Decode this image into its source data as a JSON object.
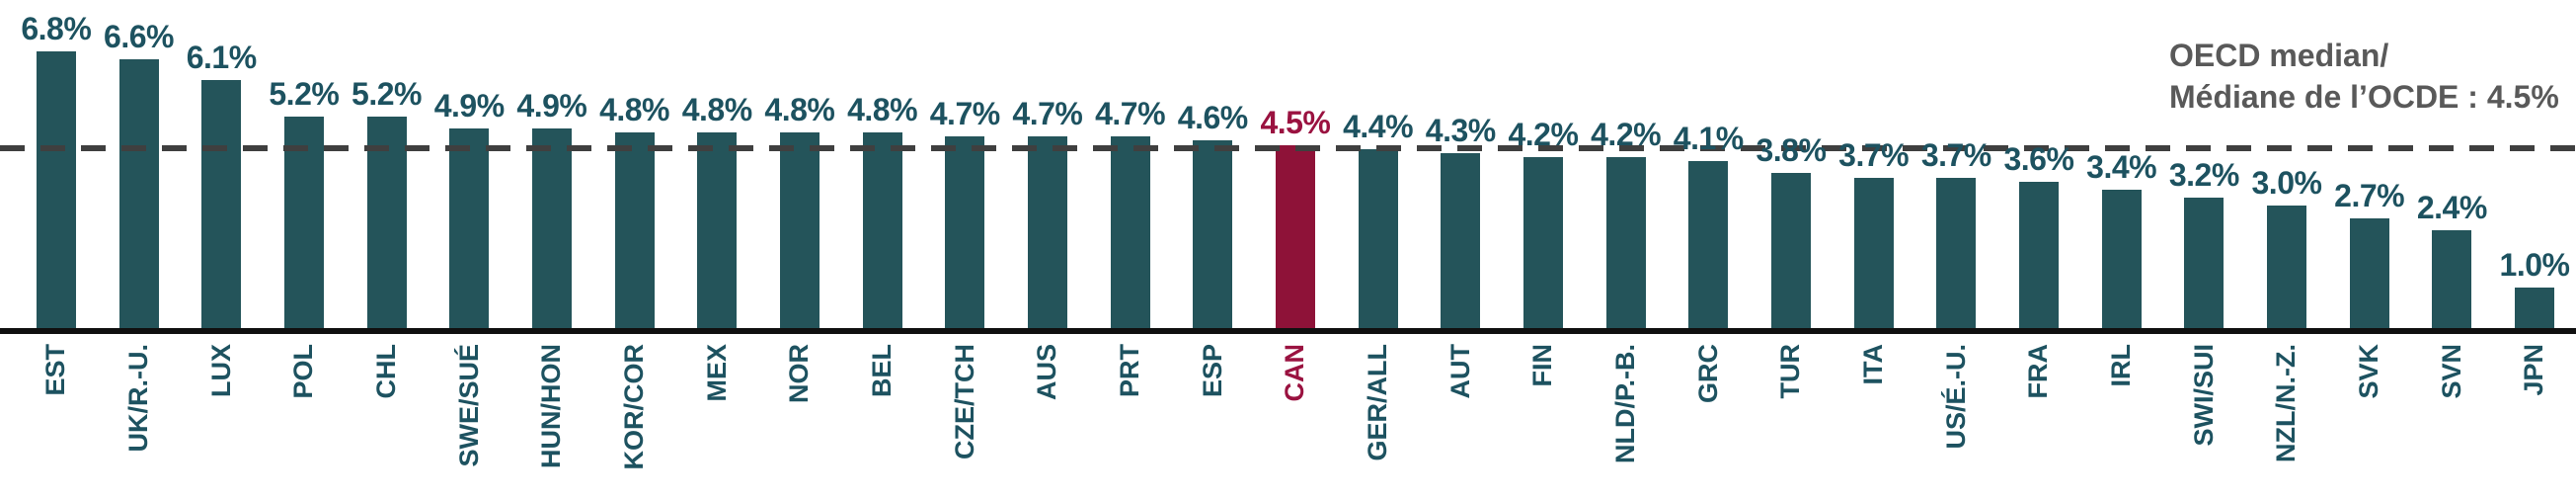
{
  "chart_data": {
    "type": "bar",
    "title": "",
    "xlabel": "",
    "ylabel": "",
    "unit": "%",
    "ylim": [
      0,
      8.1
    ],
    "grid": false,
    "categories": [
      "EST",
      "UK/R.-U.",
      "LUX",
      "POL",
      "CHL",
      "SWE/SUÉ",
      "HUN/HON",
      "KOR/COR",
      "MEX",
      "NOR",
      "BEL",
      "CZE/TCH",
      "AUS",
      "PRT",
      "ESP",
      "CAN",
      "GER/ALL",
      "AUT",
      "FIN",
      "NLD/P.-B.",
      "GRC",
      "TUR",
      "ITA",
      "US/É.-U.",
      "FRA",
      "IRL",
      "SWI/SUI",
      "NZL/N.-Z.",
      "SVK",
      "SVN",
      "JPN"
    ],
    "values": [
      6.8,
      6.6,
      6.1,
      5.2,
      5.2,
      4.9,
      4.9,
      4.8,
      4.8,
      4.8,
      4.8,
      4.7,
      4.7,
      4.7,
      4.6,
      4.5,
      4.4,
      4.3,
      4.2,
      4.2,
      4.1,
      3.8,
      3.7,
      3.7,
      3.6,
      3.4,
      3.2,
      3.0,
      2.7,
      2.4,
      1.0
    ],
    "value_labels": [
      "6.8%",
      "6.6%",
      "6.1%",
      "5.2%",
      "5.2%",
      "4.9%",
      "4.9%",
      "4.8%",
      "4.8%",
      "4.8%",
      "4.8%",
      "4.7%",
      "4.7%",
      "4.7%",
      "4.6%",
      "4.5%",
      "4.4%",
      "4.3%",
      "4.2%",
      "4.2%",
      "4.1%",
      "3.8%",
      "3.7%",
      "3.7%",
      "3.6%",
      "3.4%",
      "3.2%",
      "3.0%",
      "2.7%",
      "2.4%",
      "1.0%"
    ],
    "highlight": {
      "category": "CAN",
      "index": 15
    },
    "median_line": {
      "value": 4.5,
      "style": "dashed"
    },
    "legend_position": "none",
    "colors": {
      "bar": "#24545a",
      "bar_value_text": "#1d5260",
      "highlight_bar": "#8e1238",
      "highlight_text": "#9a1240",
      "median_line": "#3f3f3f",
      "axis_line": "#101010",
      "annotation_text": "#595959"
    }
  },
  "annotation": {
    "line1": "OECD median/",
    "line2": "Médiane de l’OCDE : 4.5%"
  }
}
